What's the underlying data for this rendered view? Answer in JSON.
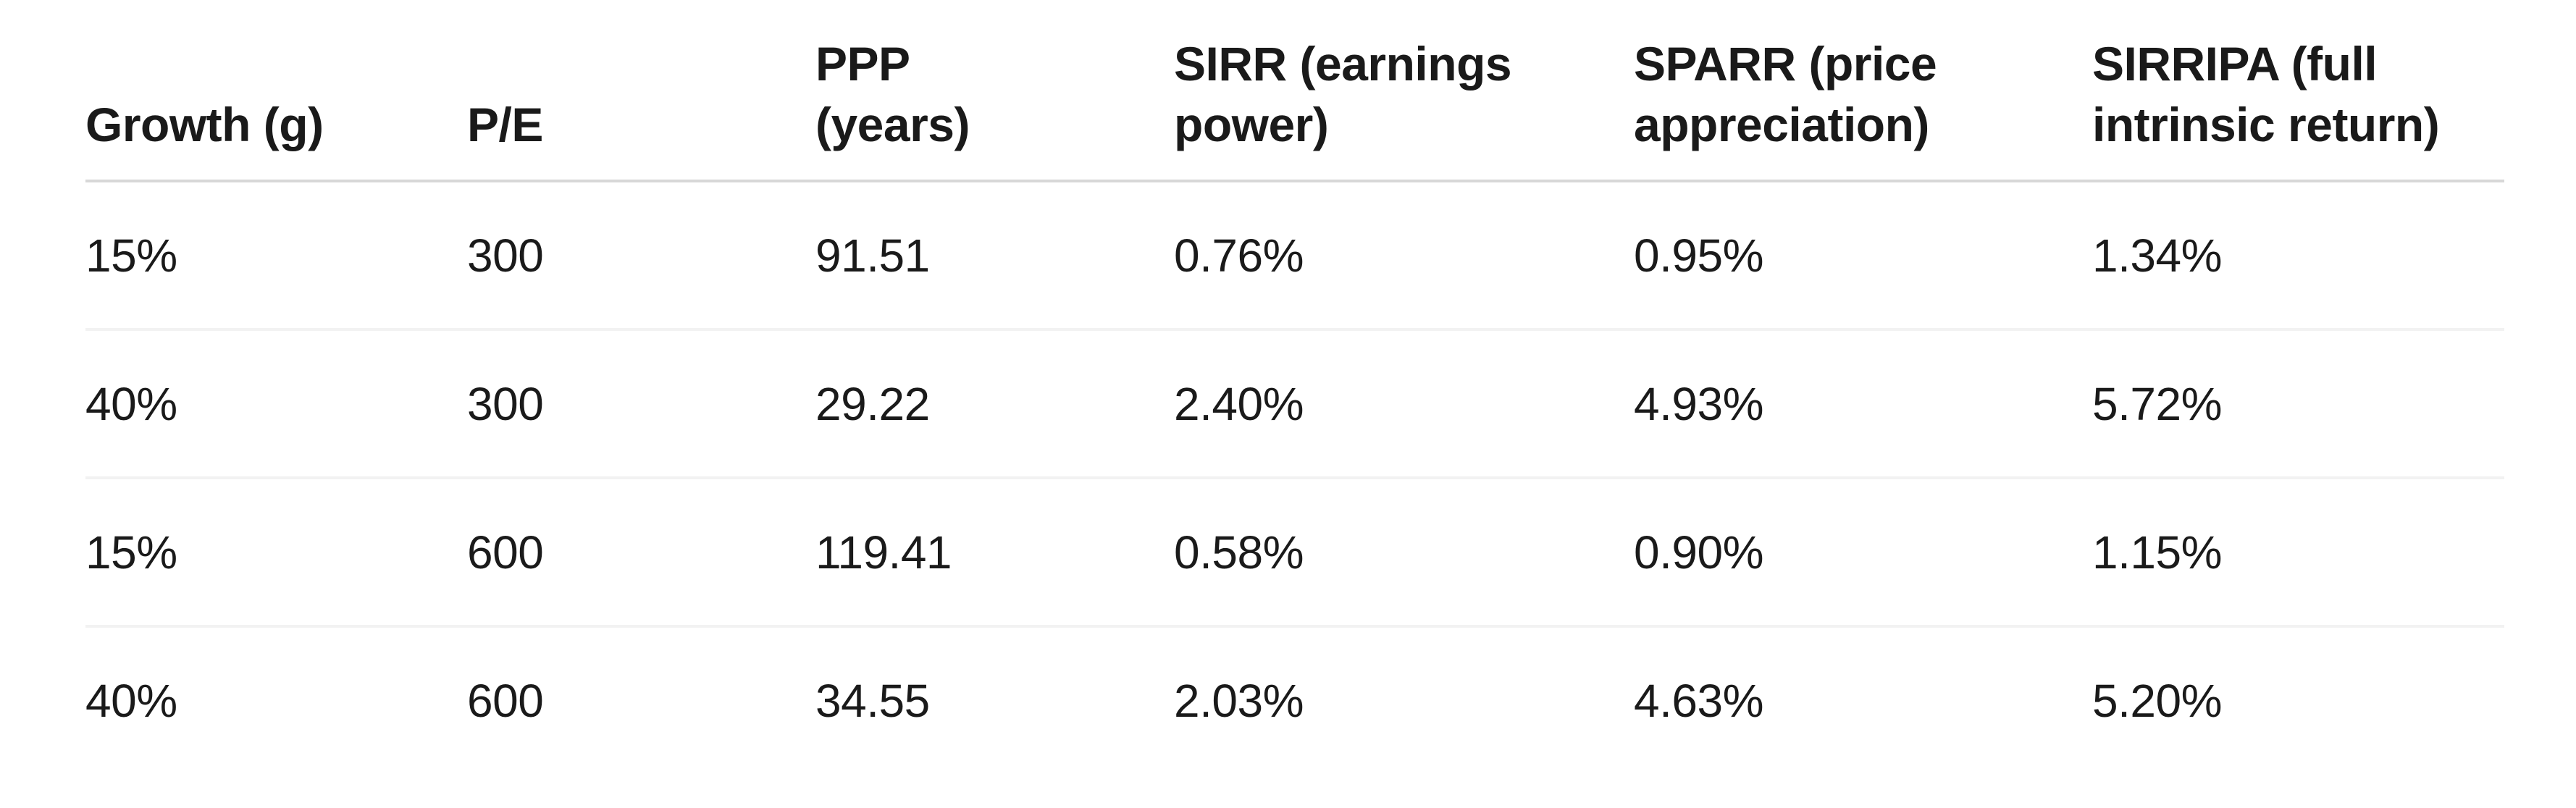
{
  "colors": {
    "background": "#ffffff",
    "text": "#1a1a1a",
    "header_rule": "#d8d8d8",
    "row_rule": "#f2f2f2"
  },
  "table": {
    "header_labels": [
      "Growth (g)",
      "P/E",
      "PPP\n(years)",
      "SIRR (earnings\npower)",
      "SPARR (price\nappreciation)",
      "SIRRIPA (full\nintrinsic return)"
    ]
  },
  "chart_data": {
    "type": "table",
    "columns": [
      "Growth (g)",
      "P/E",
      "PPP (years)",
      "SIRR (earnings power)",
      "SPARR (price appreciation)",
      "SIRRIPA (full intrinsic return)"
    ],
    "rows": [
      [
        "15%",
        "300",
        "91.51",
        "0.76%",
        "0.95%",
        "1.34%"
      ],
      [
        "40%",
        "300",
        "29.22",
        "2.40%",
        "4.93%",
        "5.72%"
      ],
      [
        "15%",
        "600",
        "119.41",
        "0.58%",
        "0.90%",
        "1.15%"
      ],
      [
        "40%",
        "600",
        "34.55",
        "2.03%",
        "4.63%",
        "5.20%"
      ]
    ]
  }
}
